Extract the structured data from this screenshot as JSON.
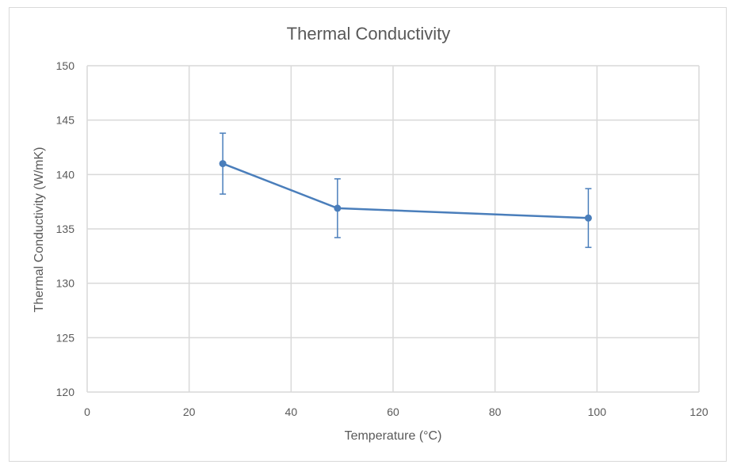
{
  "chart_data": {
    "type": "scatter",
    "title": "Thermal Conductivity",
    "xlabel": "Temperature (°C)",
    "ylabel": "Thermal Conductivity (W/mK)",
    "xlim": [
      0,
      120
    ],
    "ylim": [
      120,
      150
    ],
    "x_ticks": [
      "0",
      "20",
      "40",
      "60",
      "80",
      "100",
      "120"
    ],
    "y_ticks": [
      "120",
      "125",
      "130",
      "135",
      "140",
      "145",
      "150"
    ],
    "grid": true,
    "legend": "none",
    "series": [
      {
        "x": [
          26.6,
          49.1,
          98.3
        ],
        "y": [
          141.0,
          136.9,
          136.0
        ],
        "error": [
          2.8,
          2.7,
          2.7
        ],
        "line": true,
        "markers": true,
        "color": "#4a7ebb"
      }
    ]
  },
  "colors": {
    "grid": "#d9d9d9",
    "series": "#4a7ebb",
    "text": "#595959"
  }
}
